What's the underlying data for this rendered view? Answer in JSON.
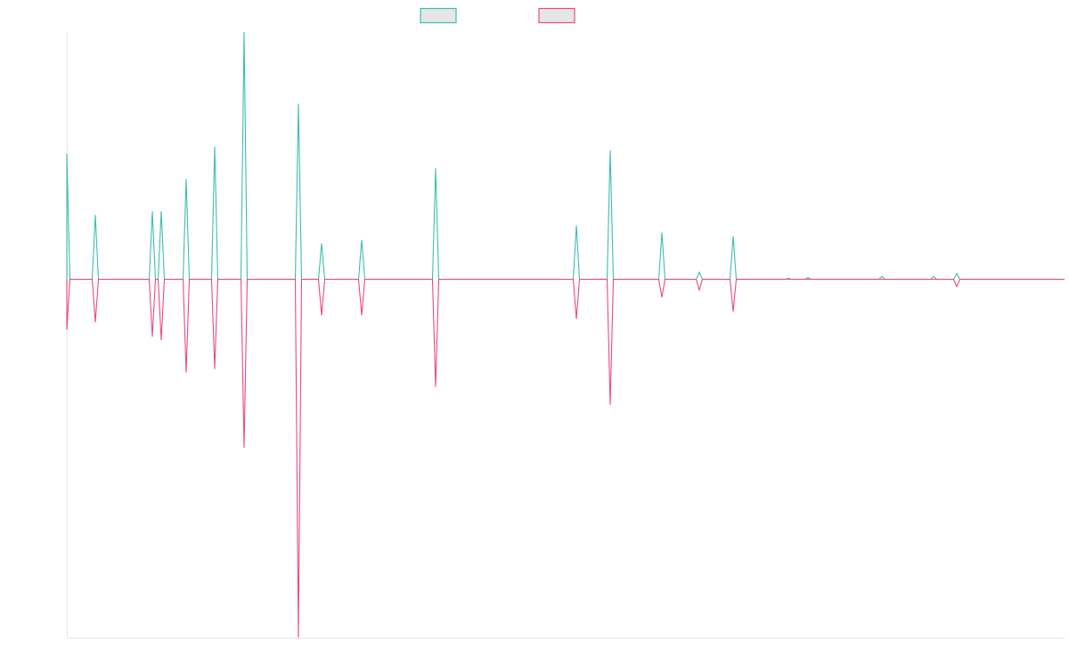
{
  "chart_data": {
    "type": "line",
    "title": "",
    "xlabel": "",
    "ylabel": "",
    "grid": false,
    "legend_position": "top",
    "x_range": [
      0,
      1120
    ],
    "y_range": [
      -1.0,
      0.69
    ],
    "series": [
      {
        "color": "#3dbeb1",
        "fill": "#e6e6e6",
        "peaks": [
          {
            "x": 0,
            "y": 0.35
          },
          {
            "x": 32,
            "y": 0.18
          },
          {
            "x": 96,
            "y": 0.19
          },
          {
            "x": 106,
            "y": 0.19
          },
          {
            "x": 134,
            "y": 0.28
          },
          {
            "x": 166,
            "y": 0.37
          },
          {
            "x": 199,
            "y": 0.69
          },
          {
            "x": 260,
            "y": 0.49
          },
          {
            "x": 286,
            "y": 0.1
          },
          {
            "x": 331,
            "y": 0.11
          },
          {
            "x": 414,
            "y": 0.31
          },
          {
            "x": 572,
            "y": 0.15
          },
          {
            "x": 610,
            "y": 0.36
          },
          {
            "x": 668,
            "y": 0.13
          },
          {
            "x": 710,
            "y": 0.02
          },
          {
            "x": 748,
            "y": 0.12
          },
          {
            "x": 810,
            "y": 0.003
          },
          {
            "x": 832,
            "y": 0.005
          },
          {
            "x": 915,
            "y": 0.008
          },
          {
            "x": 973,
            "y": 0.008
          },
          {
            "x": 999,
            "y": 0.016
          }
        ]
      },
      {
        "color": "#ea4c7a",
        "fill": "#e6e6e6",
        "peaks": [
          {
            "x": 0,
            "y": -0.14
          },
          {
            "x": 32,
            "y": -0.12
          },
          {
            "x": 96,
            "y": -0.16
          },
          {
            "x": 106,
            "y": -0.17
          },
          {
            "x": 134,
            "y": -0.26
          },
          {
            "x": 166,
            "y": -0.25
          },
          {
            "x": 199,
            "y": -0.47
          },
          {
            "x": 260,
            "y": -1.0
          },
          {
            "x": 286,
            "y": -0.1
          },
          {
            "x": 331,
            "y": -0.1
          },
          {
            "x": 414,
            "y": -0.3
          },
          {
            "x": 572,
            "y": -0.11
          },
          {
            "x": 610,
            "y": -0.35
          },
          {
            "x": 668,
            "y": -0.05
          },
          {
            "x": 710,
            "y": -0.03
          },
          {
            "x": 748,
            "y": -0.09
          },
          {
            "x": 999,
            "y": -0.02
          }
        ]
      }
    ]
  }
}
